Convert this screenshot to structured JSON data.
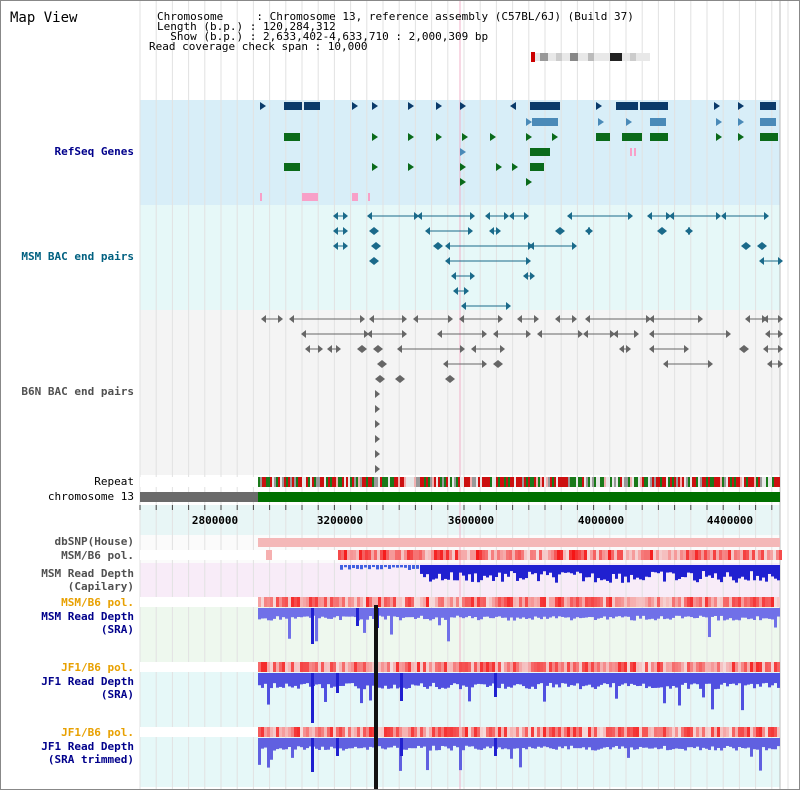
{
  "header": {
    "title": "Map View",
    "chromosome_line": "Chromosome     : Chromosome 13, reference assembly (C57BL/6J) (Build 37)",
    "length_line": "Length (b.p.) : 120,284,312",
    "show_line": "  Show (b.p.) : 2,633,402-4,633,710 : 2,000,309 bp",
    "span_line": "Read coverage check span : 10,000"
  },
  "tracks": {
    "refseq": "RefSeq Genes",
    "msm_bac": "MSM BAC end pairs",
    "b6n_bac": "B6N BAC end pairs",
    "repeat": "Repeat",
    "chromosome": "chromosome 13",
    "dbsnp": "dbSNP(House)",
    "msm_b6_pol_1": "MSM/B6 pol.",
    "msm_read_depth_cap_1": "MSM Read Depth",
    "msm_read_depth_cap_2": "(Capilary)",
    "msm_b6_pol_2": "MSM/B6 pol.",
    "msm_read_depth_sra_1": "MSM Read Depth",
    "msm_read_depth_sra_2": "(SRA)",
    "jf1_b6_pol_1": "JF1/B6 pol.",
    "jf1_read_depth_sra_1": "JF1 Read Depth",
    "jf1_read_depth_sra_2": "(SRA)",
    "jf1_b6_pol_2": "JF1/B6 pol.",
    "jf1_read_depth_trim_1": "JF1 Read Depth",
    "jf1_read_depth_trim_2": "(SRA trimmed)"
  },
  "axis": {
    "ticks": [
      "2800000",
      "3200000",
      "3600000",
      "4000000",
      "4400000"
    ]
  },
  "colors": {
    "label_blue": "#00008b",
    "label_teal": "#006080",
    "label_gray": "#505050",
    "label_orange": "#e8a000",
    "gene_dark": "#0a3a6a",
    "gene_mid": "#4a8ab8",
    "gene_green": "#0a6a1a",
    "chrom_green": "#007000",
    "chrom_gray": "#6a6a6a"
  }
}
